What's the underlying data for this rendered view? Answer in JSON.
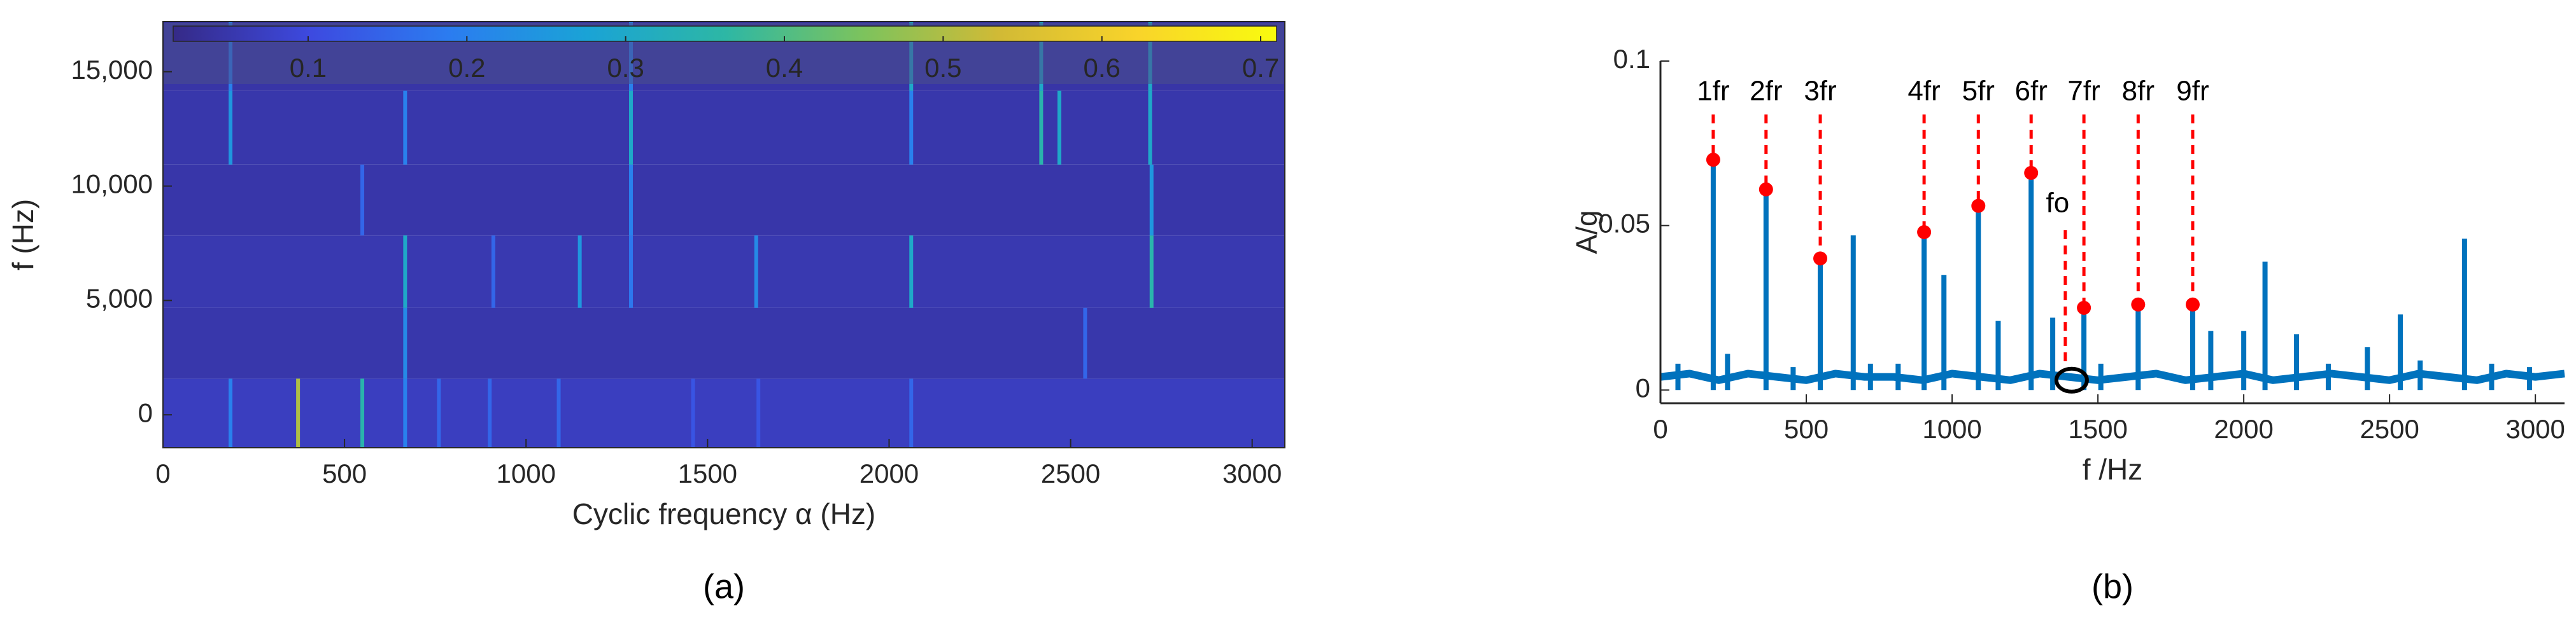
{
  "chart_data": [
    {
      "type": "heatmap",
      "caption": "(a)",
      "xlabel": "Cyclic frequency α (Hz)",
      "ylabel": "f (Hz)",
      "xlim": [
        0,
        3090
      ],
      "xticks": [
        0,
        500,
        1000,
        1500,
        2000,
        2500,
        3000
      ],
      "ylim": [
        -1440,
        17190
      ],
      "yticks": [
        0,
        {
          "value": 5000,
          "label": "5,000"
        },
        {
          "value": 10000,
          "label": "10,000"
        },
        {
          "value": 15000,
          "label": "15,000"
        }
      ],
      "row_edges": [
        -1440,
        1580,
        4680,
        7840,
        10940,
        14170,
        17190
      ],
      "row_values": [
        0.07,
        0.05,
        0.055,
        0.048,
        0.05,
        0.045
      ],
      "clim": [
        0.015,
        0.71
      ],
      "cticks": [
        0.1,
        0.2,
        0.3,
        0.4,
        0.5,
        0.6,
        0.7
      ],
      "colormap": [
        "#352a87",
        "#3d4ae0",
        "#2b7cf0",
        "#1aa3d6",
        "#2db7a5",
        "#7cc35d",
        "#d2ba35",
        "#f9d42a",
        "#f9fb0e"
      ],
      "stripes": [
        {
          "x": 372,
          "f_range": [
            -1440,
            1580
          ],
          "value": 0.5
        },
        {
          "x": 549,
          "f_range": [
            -1440,
            1580
          ],
          "value": 0.35
        },
        {
          "x": 186,
          "f_range": [
            -1440,
            1580
          ],
          "value": 0.2
        },
        {
          "x": 667,
          "f_range": [
            -1440,
            1580
          ],
          "value": 0.2
        },
        {
          "x": 760,
          "f_range": [
            -1440,
            1580
          ],
          "value": 0.15
        },
        {
          "x": 900,
          "f_range": [
            -1440,
            1580
          ],
          "value": 0.15
        },
        {
          "x": 1090,
          "f_range": [
            -1440,
            1580
          ],
          "value": 0.15
        },
        {
          "x": 1460,
          "f_range": [
            -1440,
            1580
          ],
          "value": 0.12
        },
        {
          "x": 1640,
          "f_range": [
            -1440,
            1580
          ],
          "value": 0.12
        },
        {
          "x": 2061,
          "f_range": [
            -1440,
            1580
          ],
          "value": 0.15
        },
        {
          "x": 667,
          "f_range": [
            1580,
            4680
          ],
          "value": 0.22
        },
        {
          "x": 2540,
          "f_range": [
            1580,
            4680
          ],
          "value": 0.15
        },
        {
          "x": 667,
          "f_range": [
            4680,
            7840
          ],
          "value": 0.3
        },
        {
          "x": 910,
          "f_range": [
            4680,
            7840
          ],
          "value": 0.15
        },
        {
          "x": 1148,
          "f_range": [
            4680,
            7840
          ],
          "value": 0.25
        },
        {
          "x": 1289,
          "f_range": [
            4680,
            7840
          ],
          "value": 0.18
        },
        {
          "x": 1634,
          "f_range": [
            4680,
            7840
          ],
          "value": 0.22
        },
        {
          "x": 2061,
          "f_range": [
            4680,
            7840
          ],
          "value": 0.3
        },
        {
          "x": 2723,
          "f_range": [
            4680,
            7840
          ],
          "value": 0.35
        },
        {
          "x": 549,
          "f_range": [
            7840,
            10940
          ],
          "value": 0.15
        },
        {
          "x": 1289,
          "f_range": [
            7840,
            10940
          ],
          "value": 0.2
        },
        {
          "x": 2723,
          "f_range": [
            7840,
            10940
          ],
          "value": 0.25
        },
        {
          "x": 186,
          "f_range": [
            10940,
            14170
          ],
          "value": 0.25
        },
        {
          "x": 667,
          "f_range": [
            10940,
            14170
          ],
          "value": 0.2
        },
        {
          "x": 1289,
          "f_range": [
            10940,
            14170
          ],
          "value": 0.3
        },
        {
          "x": 2061,
          "f_range": [
            10940,
            14170
          ],
          "value": 0.2
        },
        {
          "x": 2419,
          "f_range": [
            10940,
            14170
          ],
          "value": 0.35
        },
        {
          "x": 2469,
          "f_range": [
            10940,
            14170
          ],
          "value": 0.3
        },
        {
          "x": 2719,
          "f_range": [
            10940,
            14170
          ],
          "value": 0.3
        },
        {
          "x": 186,
          "f_range": [
            14170,
            17190
          ],
          "value": 0.2
        },
        {
          "x": 1289,
          "f_range": [
            14170,
            17190
          ],
          "value": 0.2
        },
        {
          "x": 2061,
          "f_range": [
            14170,
            17190
          ],
          "value": 0.3
        },
        {
          "x": 2419,
          "f_range": [
            14170,
            17190
          ],
          "value": 0.3
        },
        {
          "x": 2719,
          "f_range": [
            14170,
            17190
          ],
          "value": 0.3
        }
      ]
    },
    {
      "type": "stem",
      "caption": "(b)",
      "xlabel": "f /Hz",
      "ylabel": "A/g",
      "xlim": [
        0,
        3100
      ],
      "xticks": [
        0,
        500,
        1000,
        1500,
        2000,
        2500,
        3000
      ],
      "ylim": [
        -0.004,
        0.1
      ],
      "yticks": [
        0,
        0.05,
        0.1
      ],
      "series": [
        {
          "color": "#0072bd",
          "x": [
            60,
            181,
            230,
            362,
            455,
            548,
            661,
            720,
            815,
            904,
            972,
            1090,
            1158,
            1271,
            1345,
            1452,
            1510,
            1638,
            1825,
            1887,
            2000,
            2073,
            2181,
            2290,
            2424,
            2537,
            2605,
            2757,
            2850,
            2980
          ],
          "values": [
            0.008,
            0.07,
            0.011,
            0.061,
            0.007,
            0.04,
            0.047,
            0.008,
            0.008,
            0.048,
            0.035,
            0.056,
            0.021,
            0.066,
            0.022,
            0.025,
            0.008,
            0.026,
            0.026,
            0.018,
            0.018,
            0.039,
            0.017,
            0.008,
            0.013,
            0.023,
            0.009,
            0.046,
            0.008,
            0.007
          ]
        },
        {
          "color": "#0072bd",
          "x": [
            0,
            100,
            200,
            300,
            400,
            500,
            600,
            700,
            800,
            900,
            1000,
            1100,
            1200,
            1300,
            1400,
            1500,
            1600,
            1700,
            1800,
            1900,
            2000,
            2100,
            2200,
            2300,
            2400,
            2500,
            2600,
            2700,
            2800,
            2900,
            3000,
            3100
          ],
          "values": [
            0.004,
            0.005,
            0.003,
            0.005,
            0.004,
            0.003,
            0.005,
            0.004,
            0.004,
            0.003,
            0.005,
            0.004,
            0.003,
            0.005,
            0.004,
            0.003,
            0.004,
            0.005,
            0.003,
            0.004,
            0.005,
            0.003,
            0.004,
            0.005,
            0.004,
            0.003,
            0.005,
            0.004,
            0.003,
            0.005,
            0.004,
            0.005
          ]
        }
      ],
      "annotations": [
        {
          "label": "1fr",
          "x": 181,
          "value": 0.07,
          "marker": "dot"
        },
        {
          "label": "2fr",
          "x": 362,
          "value": 0.061,
          "marker": "dot"
        },
        {
          "label": "3fr",
          "x": 548,
          "value": 0.04,
          "marker": "dot"
        },
        {
          "label": "4fr",
          "x": 904,
          "value": 0.048,
          "marker": "dot"
        },
        {
          "label": "5fr",
          "x": 1090,
          "value": 0.056,
          "marker": "dot"
        },
        {
          "label": "6fr",
          "x": 1271,
          "value": 0.066,
          "marker": "dot"
        },
        {
          "label": "7fr",
          "x": 1452,
          "value": 0.025,
          "marker": "dot"
        },
        {
          "label": "8fr",
          "x": 1638,
          "value": 0.026,
          "marker": "dot"
        },
        {
          "label": "9fr",
          "x": 1825,
          "value": 0.026,
          "marker": "dot"
        },
        {
          "label": "fo",
          "x": 1410,
          "value": 0.003,
          "marker": "circle"
        }
      ],
      "marker_color": "#ff0000"
    }
  ]
}
